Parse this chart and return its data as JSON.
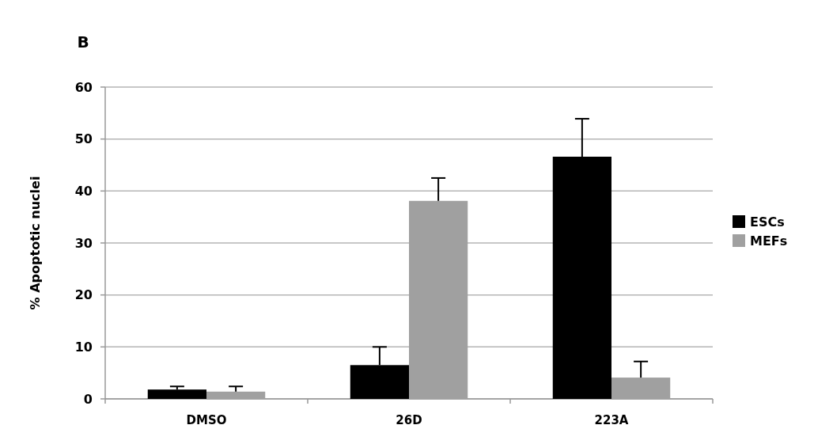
{
  "chart_data": {
    "type": "bar",
    "title": "B",
    "ylabel": "% Apoptotic nuclei",
    "categories": [
      "DMSO",
      "26D",
      "223A"
    ],
    "series": [
      {
        "name": "ESCs",
        "color": "#000000",
        "values": [
          1.8,
          6.5,
          46.6
        ],
        "errors": [
          [
            1.8,
            2.4
          ],
          [
            6.5,
            10.0
          ],
          [
            46.6,
            53.9
          ]
        ]
      },
      {
        "name": "MEFs",
        "color": "#a0a0a0",
        "values": [
          1.4,
          38.1,
          4.1
        ],
        "errors": [
          [
            1.4,
            2.4
          ],
          [
            38.1,
            42.5
          ],
          [
            4.1,
            7.2
          ]
        ]
      }
    ],
    "ylim": [
      0,
      60
    ],
    "yticks": [
      0,
      10,
      20,
      30,
      40,
      50,
      60
    ],
    "grid": "y",
    "legend": "right"
  }
}
